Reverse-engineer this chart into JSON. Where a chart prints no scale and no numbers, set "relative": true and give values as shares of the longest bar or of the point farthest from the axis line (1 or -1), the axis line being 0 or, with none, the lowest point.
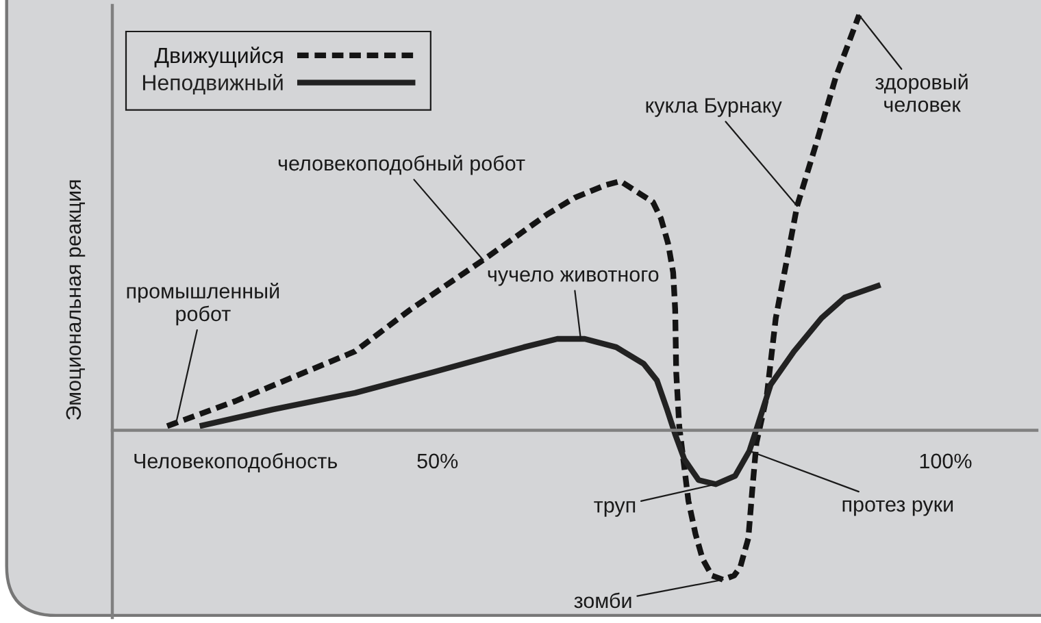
{
  "chart_data": {
    "type": "line",
    "relative": true,
    "xlabel": "Человекоподобность",
    "ylabel": "Эмоциональная реакция",
    "xlim": [
      18,
      109
    ],
    "xticks": [
      {
        "value": 50,
        "label": "50%"
      },
      {
        "value": 100,
        "label": "100%"
      }
    ],
    "legend": "top left",
    "series": [
      {
        "name": "Движущийся",
        "color": "#141414",
        "line_style": "dashed",
        "x": [
          23.4,
          30.1,
          41.9,
          47.3,
          54.5,
          60.8,
          63.5,
          66.5,
          68.0,
          69.9,
          71.2,
          72.0,
          72.7,
          73.2,
          73.4,
          73.5,
          73.8,
          74.2,
          74.7,
          75.4,
          76.1,
          77.0,
          78.1,
          79.2,
          79.8,
          80.6,
          81.0,
          81.4,
          82.4,
          83.3,
          85.4,
          87.4,
          89.2,
          91.5
        ],
        "values": [
          0.01,
          0.07,
          0.19,
          0.29,
          0.41,
          0.52,
          0.56,
          0.59,
          0.6,
          0.57,
          0.55,
          0.51,
          0.45,
          0.38,
          0.29,
          0.14,
          0.01,
          -0.07,
          -0.17,
          -0.25,
          -0.31,
          -0.35,
          -0.36,
          -0.35,
          -0.33,
          -0.26,
          -0.14,
          -0.03,
          0.08,
          0.27,
          0.54,
          0.7,
          0.85,
          1.0
        ]
      },
      {
        "name": "Неподвижный",
        "color": "#222222",
        "line_style": "solid",
        "x": [
          26.6,
          33.8,
          41.9,
          49.6,
          58.5,
          61.8,
          64.5,
          67.6,
          70.3,
          71.6,
          72.6,
          73.4,
          74.3,
          75.7,
          77.4,
          79.3,
          80.7,
          81.5,
          82.8,
          85.1,
          87.8,
          90.1,
          93.6
        ],
        "values": [
          0.01,
          0.05,
          0.09,
          0.14,
          0.2,
          0.22,
          0.22,
          0.2,
          0.16,
          0.12,
          0.05,
          -0.01,
          -0.07,
          -0.12,
          -0.13,
          -0.11,
          -0.05,
          0.01,
          0.11,
          0.19,
          0.27,
          0.32,
          0.35
        ]
      }
    ],
    "annotations": [
      {
        "text": "промышленный\nробот",
        "x": 24.3,
        "y": 0.02
      },
      {
        "text": "человекоподобный робот",
        "x": 54.5,
        "y": 0.41
      },
      {
        "text": "чучело животного",
        "x": 64.1,
        "y": 0.22
      },
      {
        "text": "кукла Бурнаку",
        "x": 85.4,
        "y": 0.54
      },
      {
        "text": "здоровый\nчеловек",
        "x": 91.5,
        "y": 1.0
      },
      {
        "text": "труп",
        "x": 77.4,
        "y": -0.13
      },
      {
        "text": "зомби",
        "x": 78.1,
        "y": -0.36
      },
      {
        "text": "протез руки",
        "x": 80.7,
        "y": -0.05
      }
    ]
  }
}
